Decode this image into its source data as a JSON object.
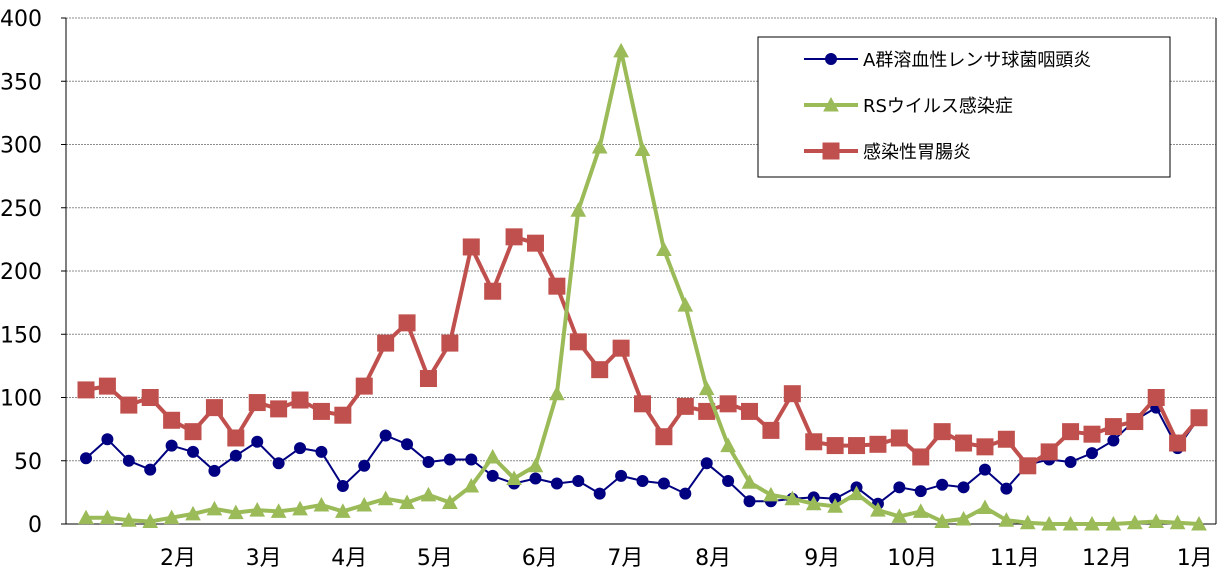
{
  "chart_data": {
    "type": "line",
    "title": "",
    "xlabel": "",
    "ylabel": "",
    "ylim": [
      0,
      400
    ],
    "yticks": [
      0,
      50,
      100,
      150,
      200,
      250,
      300,
      350,
      400
    ],
    "ytick_labels": [
      "0",
      "50",
      "100",
      "150",
      "200",
      "250",
      "300",
      "350",
      "400"
    ],
    "x_range": [
      1,
      53
    ],
    "xticks": [
      {
        "x": 5.3,
        "label": "2月"
      },
      {
        "x": 9.3,
        "label": "3月"
      },
      {
        "x": 13.3,
        "label": "4月"
      },
      {
        "x": 17.3,
        "label": "5月"
      },
      {
        "x": 22.2,
        "label": "6月"
      },
      {
        "x": 26.2,
        "label": "7月"
      },
      {
        "x": 30.3,
        "label": "8月"
      },
      {
        "x": 35.4,
        "label": "9月"
      },
      {
        "x": 39.6,
        "label": "10月"
      },
      {
        "x": 44.4,
        "label": "11月"
      },
      {
        "x": 48.7,
        "label": "12月"
      },
      {
        "x": 52.8,
        "label": "1月"
      }
    ],
    "grid": true,
    "legend_position": "top-right",
    "series": [
      {
        "name": "A群溶血性レンサ球菌咽頭炎",
        "color": "#000080",
        "marker": "circle",
        "values": [
          52,
          67,
          50,
          43,
          62,
          57,
          42,
          54,
          65,
          48,
          60,
          57,
          30,
          46,
          70,
          63,
          49,
          51,
          51,
          38,
          32,
          36,
          32,
          34,
          24,
          38,
          34,
          32,
          24,
          48,
          34,
          18,
          18,
          20,
          21,
          20,
          29,
          16,
          29,
          26,
          31,
          29,
          43,
          28,
          47,
          51,
          49,
          56,
          66,
          82,
          92,
          60,
          84
        ]
      },
      {
        "name": "RSウイルス感染症",
        "color": "#9BBB59",
        "marker": "triangle",
        "values": [
          5,
          5,
          3,
          2,
          5,
          8,
          12,
          9,
          11,
          10,
          12,
          15,
          10,
          15,
          20,
          17,
          23,
          17,
          30,
          53,
          36,
          46,
          103,
          248,
          298,
          374,
          296,
          217,
          173,
          107,
          62,
          33,
          23,
          20,
          16,
          14,
          24,
          11,
          6,
          10,
          2,
          4,
          13,
          3,
          1,
          0,
          0,
          0,
          0,
          1,
          2,
          1,
          0
        ]
      },
      {
        "name": "感染性胃腸炎",
        "color": "#C0504D",
        "marker": "square",
        "values": [
          106,
          109,
          94,
          100,
          82,
          73,
          92,
          68,
          96,
          91,
          98,
          89,
          86,
          109,
          143,
          159,
          115,
          143,
          219,
          184,
          227,
          222,
          188,
          144,
          122,
          139,
          95,
          69,
          93,
          89,
          95,
          89,
          74,
          103,
          65,
          62,
          62,
          63,
          68,
          53,
          73,
          64,
          61,
          67,
          46,
          57,
          73,
          71,
          77,
          81,
          100,
          64,
          84
        ]
      }
    ]
  }
}
